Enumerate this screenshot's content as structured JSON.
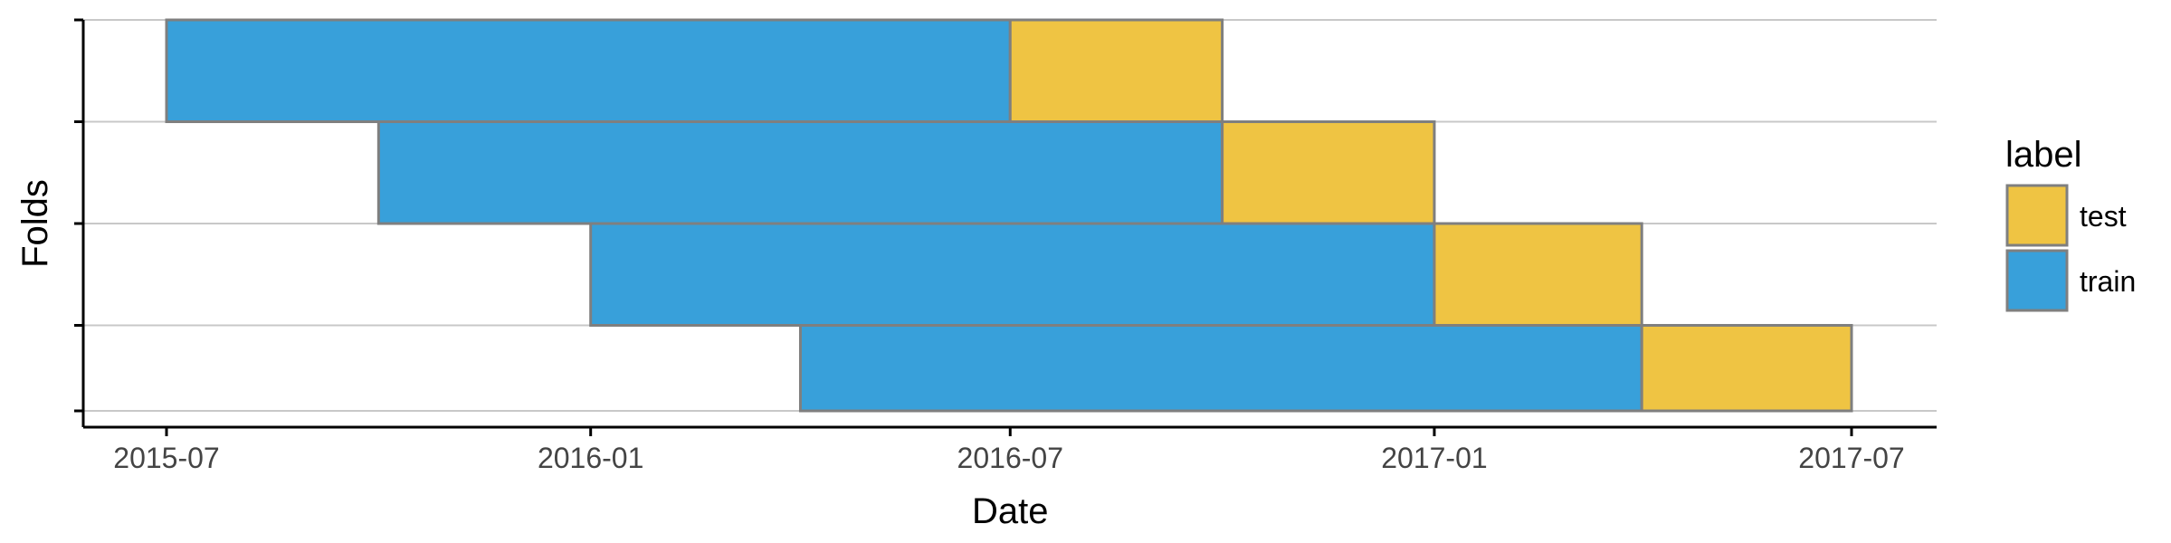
{
  "chart_data": {
    "type": "bar",
    "subtype": "horizontal-timeline",
    "xlabel": "Date",
    "ylabel": "Folds",
    "x_ticks": [
      "2015-07",
      "2016-01",
      "2016-07",
      "2017-01",
      "2017-07"
    ],
    "xlim": [
      "2015-06-01",
      "2017-08-01"
    ],
    "ylim": [
      0.5,
      4.5
    ],
    "grid": {
      "x": false,
      "y": true
    },
    "legend": {
      "title": "label",
      "position": "right",
      "entries": [
        {
          "key": "test",
          "label": "test",
          "color": "#EFC443"
        },
        {
          "key": "train",
          "label": "train",
          "color": "#38A0DA"
        }
      ]
    },
    "border_color": "#7F7F7F",
    "folds": [
      {
        "fold": 1,
        "train": [
          "2016-04-01",
          "2017-04-01"
        ],
        "test": [
          "2017-04-01",
          "2017-07-01"
        ]
      },
      {
        "fold": 2,
        "train": [
          "2016-01-01",
          "2017-01-01"
        ],
        "test": [
          "2017-01-01",
          "2017-04-01"
        ]
      },
      {
        "fold": 3,
        "train": [
          "2015-10-01",
          "2016-10-01"
        ],
        "test": [
          "2016-10-01",
          "2017-01-01"
        ]
      },
      {
        "fold": 4,
        "train": [
          "2015-07-01",
          "2016-07-01"
        ],
        "test": [
          "2016-07-01",
          "2016-10-01"
        ]
      }
    ]
  }
}
